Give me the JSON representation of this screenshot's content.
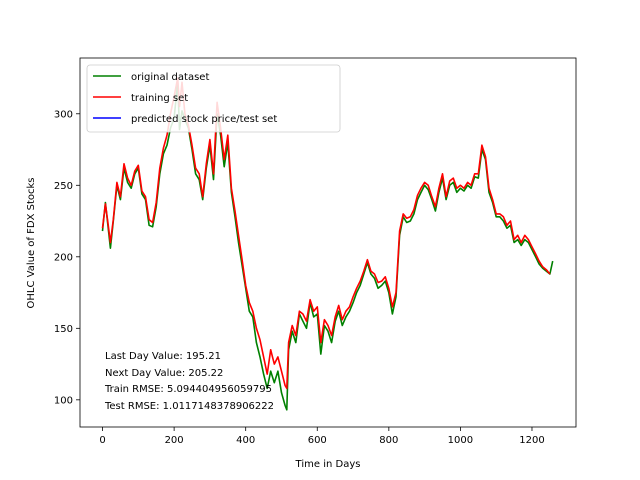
{
  "chart_data": {
    "type": "line",
    "title": "",
    "xlabel": "Time in Days",
    "ylabel": "OHLC Value of FDX Stocks",
    "xlim": [
      -63,
      1323
    ],
    "ylim": [
      81,
      339
    ],
    "xticks": [
      0,
      200,
      400,
      600,
      800,
      1000,
      1200
    ],
    "yticks": [
      100,
      150,
      200,
      250,
      300
    ],
    "grid": false,
    "legend_position": "top-left",
    "series": [
      {
        "name": "original dataset",
        "color": "#008000",
        "x": [
          0,
          8,
          15,
          22,
          30,
          40,
          50,
          60,
          70,
          80,
          90,
          100,
          110,
          120,
          130,
          140,
          150,
          160,
          170,
          180,
          190,
          200,
          210,
          215,
          222,
          230,
          240,
          250,
          260,
          270,
          280,
          290,
          300,
          310,
          320,
          330,
          340,
          350,
          360,
          370,
          380,
          390,
          400,
          410,
          420,
          430,
          440,
          450,
          460,
          470,
          480,
          490,
          500,
          510,
          515,
          520,
          530,
          540,
          550,
          560,
          570,
          580,
          590,
          600,
          610,
          620,
          630,
          640,
          650,
          660,
          670,
          680,
          690,
          700,
          710,
          720,
          730,
          740,
          750,
          760,
          770,
          780,
          790,
          800,
          810,
          820,
          830,
          840,
          850,
          860,
          870,
          880,
          890,
          900,
          910,
          920,
          930,
          940,
          950,
          960,
          970,
          980,
          990,
          1000,
          1010,
          1020,
          1030,
          1040,
          1050,
          1060,
          1070,
          1080,
          1090,
          1100,
          1110,
          1120,
          1130,
          1140,
          1150,
          1160,
          1170,
          1180,
          1190,
          1200,
          1210,
          1220,
          1230,
          1240,
          1250,
          1258
        ],
        "y": [
          218,
          238,
          222,
          206,
          225,
          250,
          240,
          262,
          252,
          248,
          258,
          262,
          244,
          240,
          222,
          221,
          235,
          258,
          272,
          278,
          290,
          297,
          322,
          289,
          302,
          296,
          290,
          275,
          258,
          254,
          240,
          262,
          278,
          254,
          300,
          285,
          263,
          280,
          245,
          228,
          210,
          194,
          178,
          162,
          158,
          140,
          130,
          118,
          108,
          120,
          112,
          120,
          105,
          96,
          93,
          135,
          148,
          140,
          160,
          155,
          150,
          168,
          158,
          160,
          132,
          152,
          148,
          140,
          155,
          162,
          152,
          158,
          162,
          168,
          175,
          180,
          188,
          196,
          188,
          185,
          178,
          180,
          183,
          175,
          160,
          172,
          215,
          228,
          224,
          225,
          230,
          240,
          245,
          250,
          247,
          240,
          232,
          245,
          255,
          240,
          250,
          252,
          245,
          248,
          246,
          250,
          248,
          256,
          255,
          275,
          268,
          245,
          238,
          228,
          228,
          225,
          220,
          222,
          210,
          212,
          208,
          212,
          210,
          205,
          200,
          195,
          192,
          190,
          188,
          197
        ]
      },
      {
        "name": "training set",
        "color": "#ff0000",
        "x": [
          0,
          8,
          15,
          22,
          30,
          40,
          50,
          60,
          70,
          80,
          90,
          100,
          110,
          120,
          130,
          140,
          150,
          160,
          170,
          180,
          190,
          200,
          210,
          215,
          222,
          230,
          240,
          250,
          260,
          270,
          280,
          290,
          300,
          310,
          320,
          330,
          340,
          350,
          360,
          370,
          380,
          390,
          400,
          410,
          420,
          430,
          440,
          450,
          460,
          470,
          480,
          490,
          500,
          510,
          515,
          520,
          530,
          540,
          550,
          560,
          570,
          580,
          590,
          600,
          610,
          620,
          630,
          640,
          650,
          660,
          670,
          680,
          690,
          700,
          710,
          720,
          730,
          740,
          750,
          760,
          770,
          780,
          790,
          800,
          810,
          820,
          830,
          840,
          850,
          860,
          870,
          880,
          890,
          900,
          910,
          920,
          930,
          940,
          950,
          960,
          970,
          980,
          990,
          1000,
          1010,
          1020,
          1030,
          1040,
          1050,
          1060,
          1070,
          1080,
          1090,
          1100,
          1110,
          1120,
          1130,
          1140,
          1150,
          1160,
          1170,
          1180,
          1190,
          1200,
          1210,
          1220,
          1230,
          1240,
          1250
        ],
        "y": [
          220,
          237,
          224,
          210,
          226,
          252,
          242,
          265,
          255,
          250,
          260,
          264,
          246,
          242,
          226,
          224,
          238,
          262,
          276,
          285,
          300,
          312,
          325,
          305,
          322,
          300,
          292,
          278,
          262,
          258,
          242,
          265,
          282,
          258,
          308,
          290,
          268,
          285,
          248,
          232,
          215,
          198,
          180,
          168,
          162,
          150,
          142,
          130,
          118,
          135,
          125,
          130,
          120,
          110,
          108,
          140,
          152,
          145,
          162,
          160,
          155,
          170,
          162,
          165,
          140,
          156,
          152,
          145,
          158,
          166,
          156,
          162,
          165,
          172,
          178,
          183,
          190,
          198,
          190,
          188,
          182,
          183,
          186,
          178,
          165,
          175,
          218,
          230,
          227,
          228,
          233,
          243,
          248,
          252,
          250,
          242,
          235,
          248,
          258,
          242,
          253,
          255,
          248,
          250,
          248,
          252,
          250,
          258,
          258,
          278,
          270,
          248,
          240,
          230,
          230,
          228,
          222,
          225,
          212,
          215,
          210,
          215,
          212,
          207,
          202,
          197,
          193,
          191,
          188
        ]
      },
      {
        "name": "predicted stock price/test set",
        "color": "#0000ff",
        "x": [],
        "y": []
      }
    ],
    "annotations": [
      "Last Day Value: 195.21",
      "Next Day Value: 205.22",
      "Train RMSE: 5.094404956059795",
      "Test RMSE: 1.0117148378906222"
    ]
  }
}
